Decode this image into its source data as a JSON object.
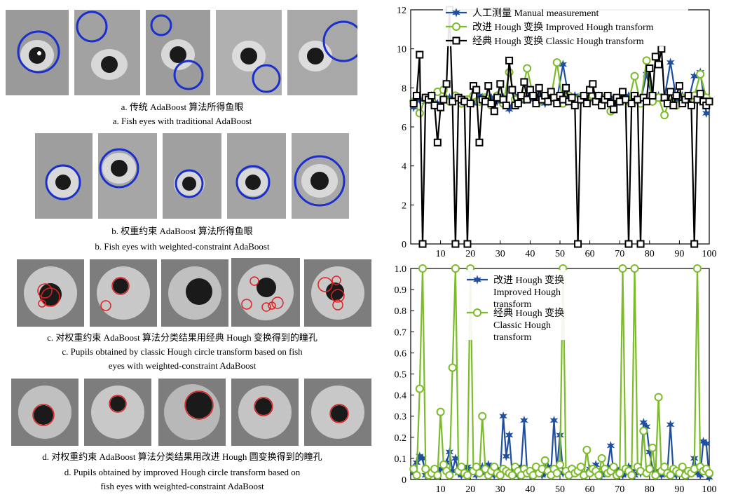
{
  "captions": {
    "a_cn": "a.  传统 AdaBoost 算法所得鱼眼",
    "a_en": "a. Fish eyes with traditional AdaBoost",
    "b_cn": "b.  权重约束 AdaBoost 算法所得鱼眼",
    "b_en": "b. Fish eyes with weighted-constraint AdaBoost",
    "c_cn": "c.  对权重约束 AdaBoost 算法分类结果用经典 Hough 变换得到的瞳孔",
    "c_en1": "c. Pupils obtained by classic Hough circle transform based on fish",
    "c_en2": "eyes with weighted-constraint AdaBoost",
    "d_cn": "d.  对权重约束 AdaBoost 算法分类结果用改进 Hough 圆变换得到的瞳孔",
    "d_en1": "d. Pupils obtained by improved Hough circle transform based on",
    "d_en2": "fish eyes with weighted-constraint AdaBoost"
  },
  "chart_data": [
    {
      "type": "line",
      "xlim": [
        0,
        100
      ],
      "ylim": [
        0,
        12
      ],
      "xticks": [
        10,
        20,
        30,
        40,
        50,
        60,
        70,
        80,
        90,
        100
      ],
      "yticks": [
        0,
        2,
        4,
        6,
        8,
        10,
        12
      ],
      "legend_position": "top-left",
      "series": [
        {
          "name": "人工测量 Manual measurement",
          "color": "#1f4fa0",
          "marker": "star",
          "x": [
            1,
            3,
            5,
            7,
            9,
            11,
            13,
            15,
            17,
            19,
            21,
            23,
            25,
            27,
            29,
            31,
            33,
            35,
            37,
            39,
            41,
            43,
            45,
            47,
            49,
            51,
            53,
            55,
            57,
            59,
            61,
            63,
            65,
            67,
            69,
            71,
            73,
            75,
            77,
            79,
            81,
            83,
            85,
            87,
            89,
            91,
            93,
            95,
            97,
            99
          ],
          "y": [
            7.0,
            7.4,
            7.3,
            7.6,
            7.2,
            7.3,
            7.5,
            7.6,
            7.4,
            7.3,
            7.2,
            7.6,
            7.4,
            7.5,
            7.3,
            7.5,
            6.9,
            7.6,
            7.3,
            7.5,
            7.4,
            7.6,
            7.2,
            7.5,
            7.4,
            9.2,
            7.4,
            7.6,
            7.3,
            7.5,
            7.4,
            7.6,
            7.3,
            7.5,
            7.2,
            7.4,
            7.6,
            7.5,
            7.3,
            8.7,
            7.4,
            7.6,
            7.5,
            9.3,
            7.4,
            7.6,
            7.3,
            8.6,
            8.8,
            6.7
          ]
        },
        {
          "name": "改进 Hough 变换 Improved Hough transform",
          "color": "#7cbb2a",
          "marker": "circle",
          "x": [
            1,
            3,
            5,
            7,
            9,
            11,
            13,
            15,
            17,
            19,
            21,
            23,
            25,
            27,
            29,
            31,
            33,
            35,
            37,
            39,
            41,
            43,
            45,
            47,
            49,
            51,
            53,
            55,
            57,
            59,
            61,
            63,
            65,
            67,
            69,
            71,
            73,
            75,
            77,
            79,
            81,
            83,
            85,
            87,
            89,
            91,
            93,
            95,
            97,
            99
          ],
          "y": [
            7.3,
            6.7,
            7.5,
            7.4,
            7.8,
            7.9,
            7.3,
            7.6,
            7.2,
            7.4,
            7.6,
            7.3,
            7.5,
            7.1,
            7.6,
            7.2,
            8.8,
            7.4,
            7.5,
            9.0,
            7.6,
            7.3,
            7.4,
            7.5,
            9.3,
            7.2,
            7.6,
            7.4,
            7.5,
            7.3,
            7.6,
            7.4,
            7.5,
            6.8,
            7.4,
            7.5,
            7.3,
            8.6,
            7.2,
            9.4,
            7.3,
            7.5,
            6.6,
            7.6,
            7.1,
            7.5,
            7.4,
            7.6,
            8.7,
            7.5
          ]
        },
        {
          "name": "经典 Hough 变换 Classic Hough transform",
          "color": "#000000",
          "marker": "square",
          "x": [
            1,
            2,
            3,
            4,
            5,
            6,
            7,
            8,
            9,
            10,
            11,
            12,
            13,
            14,
            15,
            16,
            17,
            18,
            19,
            20,
            21,
            22,
            23,
            24,
            25,
            26,
            27,
            28,
            29,
            30,
            31,
            32,
            33,
            34,
            35,
            36,
            37,
            38,
            39,
            40,
            41,
            42,
            43,
            44,
            45,
            46,
            47,
            48,
            49,
            50,
            51,
            52,
            53,
            54,
            55,
            56,
            57,
            58,
            59,
            60,
            61,
            62,
            63,
            64,
            65,
            66,
            67,
            68,
            69,
            70,
            71,
            72,
            73,
            74,
            75,
            76,
            77,
            78,
            79,
            80,
            81,
            82,
            83,
            84,
            85,
            86,
            87,
            88,
            89,
            90,
            91,
            92,
            93,
            94,
            95,
            96,
            97,
            98,
            99,
            100
          ],
          "y": [
            7.2,
            7.6,
            9.7,
            0.0,
            7.5,
            7.4,
            7.6,
            7.1,
            5.2,
            7.0,
            7.4,
            8.2,
            12.0,
            7.3,
            0.0,
            7.5,
            7.4,
            7.3,
            0.0,
            7.2,
            8.1,
            7.9,
            5.2,
            7.4,
            7.3,
            8.1,
            7.2,
            6.8,
            7.5,
            8.2,
            7.4,
            7.1,
            9.4,
            7.9,
            7.1,
            7.2,
            7.6,
            8.3,
            7.4,
            7.9,
            7.6,
            7.2,
            8.0,
            7.4,
            7.6,
            7.3,
            7.8,
            7.5,
            7.2,
            7.6,
            7.4,
            8.0,
            7.3,
            7.5,
            7.1,
            0.0,
            7.4,
            7.6,
            7.2,
            7.9,
            8.2,
            7.3,
            7.6,
            7.1,
            7.4,
            7.6,
            7.2,
            6.9,
            7.5,
            7.3,
            7.8,
            7.4,
            0.0,
            7.2,
            7.6,
            7.4,
            0.0,
            7.5,
            7.3,
            9.0,
            7.6,
            9.6,
            9.2,
            10.0,
            7.5,
            7.2,
            7.8,
            7.1,
            7.6,
            8.1,
            7.2,
            7.4,
            7.6,
            7.1,
            0.0,
            7.4,
            7.7,
            7.3,
            7.1,
            7.3
          ]
        }
      ]
    },
    {
      "type": "line",
      "xlim": [
        0,
        100
      ],
      "ylim": [
        0,
        1.0
      ],
      "xticks": [
        10,
        20,
        30,
        40,
        50,
        60,
        70,
        80,
        90,
        100
      ],
      "yticks": [
        0,
        0.1,
        0.2,
        0.3,
        0.4,
        0.5,
        0.6,
        0.7,
        0.8,
        0.9,
        1.0
      ],
      "legend_position": "top-left",
      "series": [
        {
          "name": "改进 Hough 变换 Improved Hough transform",
          "color": "#1f4fa0",
          "marker": "star",
          "x": [
            1,
            2,
            3,
            4,
            5,
            6,
            7,
            8,
            9,
            10,
            11,
            12,
            13,
            14,
            15,
            16,
            17,
            18,
            19,
            20,
            21,
            22,
            23,
            24,
            25,
            26,
            27,
            28,
            29,
            30,
            31,
            32,
            33,
            34,
            35,
            36,
            37,
            38,
            39,
            40,
            41,
            42,
            43,
            44,
            45,
            46,
            47,
            48,
            49,
            50,
            51,
            52,
            53,
            54,
            55,
            56,
            57,
            58,
            59,
            60,
            61,
            62,
            63,
            64,
            65,
            66,
            67,
            68,
            69,
            70,
            71,
            72,
            73,
            74,
            75,
            76,
            77,
            78,
            79,
            80,
            81,
            82,
            83,
            84,
            85,
            86,
            87,
            88,
            89,
            90,
            91,
            92,
            93,
            94,
            95,
            96,
            97,
            98,
            99,
            100
          ],
          "y": [
            0.03,
            0.08,
            0.11,
            0.1,
            0.02,
            0.03,
            0.04,
            0.02,
            0.03,
            0.05,
            0.06,
            0.08,
            0.13,
            0.04,
            0.1,
            0.03,
            0.02,
            0.04,
            0.06,
            0.03,
            0.05,
            0.02,
            0.04,
            0.06,
            0.03,
            0.07,
            0.04,
            0.02,
            0.05,
            0.03,
            0.3,
            0.11,
            0.21,
            0.03,
            0.05,
            0.02,
            0.06,
            0.28,
            0.04,
            0.02,
            0.03,
            0.05,
            0.04,
            0.02,
            0.03,
            0.06,
            0.04,
            0.28,
            0.05,
            0.21,
            0.03,
            0.04,
            0.02,
            0.05,
            0.03,
            0.04,
            0.06,
            0.02,
            0.03,
            0.05,
            0.04,
            0.07,
            0.03,
            0.02,
            0.04,
            0.06,
            0.16,
            0.03,
            0.05,
            0.04,
            0.02,
            0.03,
            0.06,
            0.04,
            0.02,
            0.05,
            0.03,
            0.27,
            0.25,
            0.13,
            0.05,
            0.04,
            0.03,
            0.02,
            0.06,
            0.04,
            0.26,
            0.03,
            0.02,
            0.04,
            0.05,
            0.03,
            0.02,
            0.04,
            0.1,
            0.03,
            0.02,
            0.18,
            0.17,
            0.01
          ]
        },
        {
          "name": "经典 Hough 变换 Classic Hough transform",
          "color": "#7cbb2a",
          "marker": "circle",
          "x": [
            1,
            2,
            3,
            4,
            5,
            6,
            7,
            8,
            9,
            10,
            11,
            12,
            13,
            14,
            15,
            16,
            17,
            18,
            19,
            20,
            21,
            22,
            23,
            24,
            25,
            26,
            27,
            28,
            29,
            30,
            31,
            32,
            33,
            34,
            35,
            36,
            37,
            38,
            39,
            40,
            41,
            42,
            43,
            44,
            45,
            46,
            47,
            48,
            49,
            50,
            51,
            52,
            53,
            54,
            55,
            56,
            57,
            58,
            59,
            60,
            61,
            62,
            63,
            64,
            65,
            66,
            67,
            68,
            69,
            70,
            71,
            72,
            73,
            74,
            75,
            76,
            77,
            78,
            79,
            80,
            81,
            82,
            83,
            84,
            85,
            86,
            87,
            88,
            89,
            90,
            91,
            92,
            93,
            94,
            95,
            96,
            97,
            98,
            99,
            100
          ],
          "y": [
            0.05,
            0.02,
            0.43,
            1.0,
            0.05,
            0.02,
            0.03,
            0.05,
            0.02,
            0.32,
            0.07,
            0.04,
            0.02,
            0.53,
            1.0,
            0.04,
            0.06,
            0.03,
            0.02,
            1.0,
            0.04,
            0.06,
            0.03,
            0.3,
            0.05,
            0.02,
            0.04,
            0.06,
            0.03,
            0.02,
            0.05,
            0.04,
            0.03,
            0.02,
            0.06,
            0.04,
            0.02,
            0.05,
            0.03,
            0.04,
            0.02,
            0.06,
            0.03,
            0.05,
            0.09,
            0.04,
            0.02,
            0.05,
            0.03,
            0.07,
            1.0,
            0.04,
            0.02,
            0.05,
            0.03,
            0.04,
            0.06,
            0.02,
            0.14,
            0.03,
            0.05,
            0.04,
            0.02,
            0.1,
            0.05,
            0.03,
            0.04,
            0.06,
            0.02,
            0.03,
            1.0,
            0.05,
            0.04,
            0.02,
            1.0,
            0.06,
            0.04,
            0.23,
            0.03,
            0.05,
            0.15,
            0.02,
            0.39,
            0.04,
            0.06,
            0.03,
            0.02,
            0.05,
            0.04,
            0.03,
            0.06,
            0.02,
            0.04,
            0.03,
            0.05,
            1.0,
            0.06,
            0.04,
            0.05,
            0.03
          ]
        }
      ]
    }
  ]
}
